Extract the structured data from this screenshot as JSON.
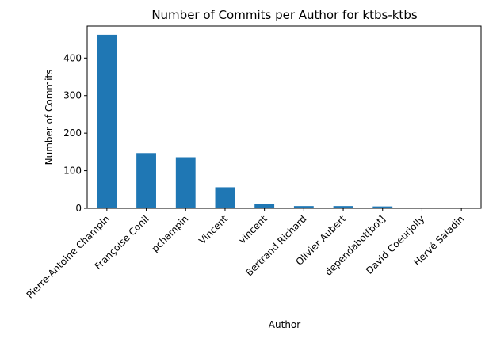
{
  "chart_data": {
    "type": "bar",
    "title": "Number of Commits per Author for ktbs-ktbs",
    "xlabel": "Author",
    "ylabel": "Number of Commits",
    "categories": [
      "Pierre-Antoine Champin",
      "Françoise Conil",
      "pchampin",
      "Vincent",
      "vincent",
      "Bertrand Richard",
      "Olivier Aubert",
      "dependabot[bot]",
      "David Coeurjolly",
      "Hervé Saladin"
    ],
    "values": [
      462,
      147,
      136,
      56,
      12,
      6,
      6,
      5,
      2,
      2
    ],
    "ylim": [
      0,
      485
    ],
    "yticks": [
      0,
      100,
      200,
      300,
      400
    ],
    "grid": false,
    "legend": "none",
    "bar_color": "#1f77b4"
  }
}
